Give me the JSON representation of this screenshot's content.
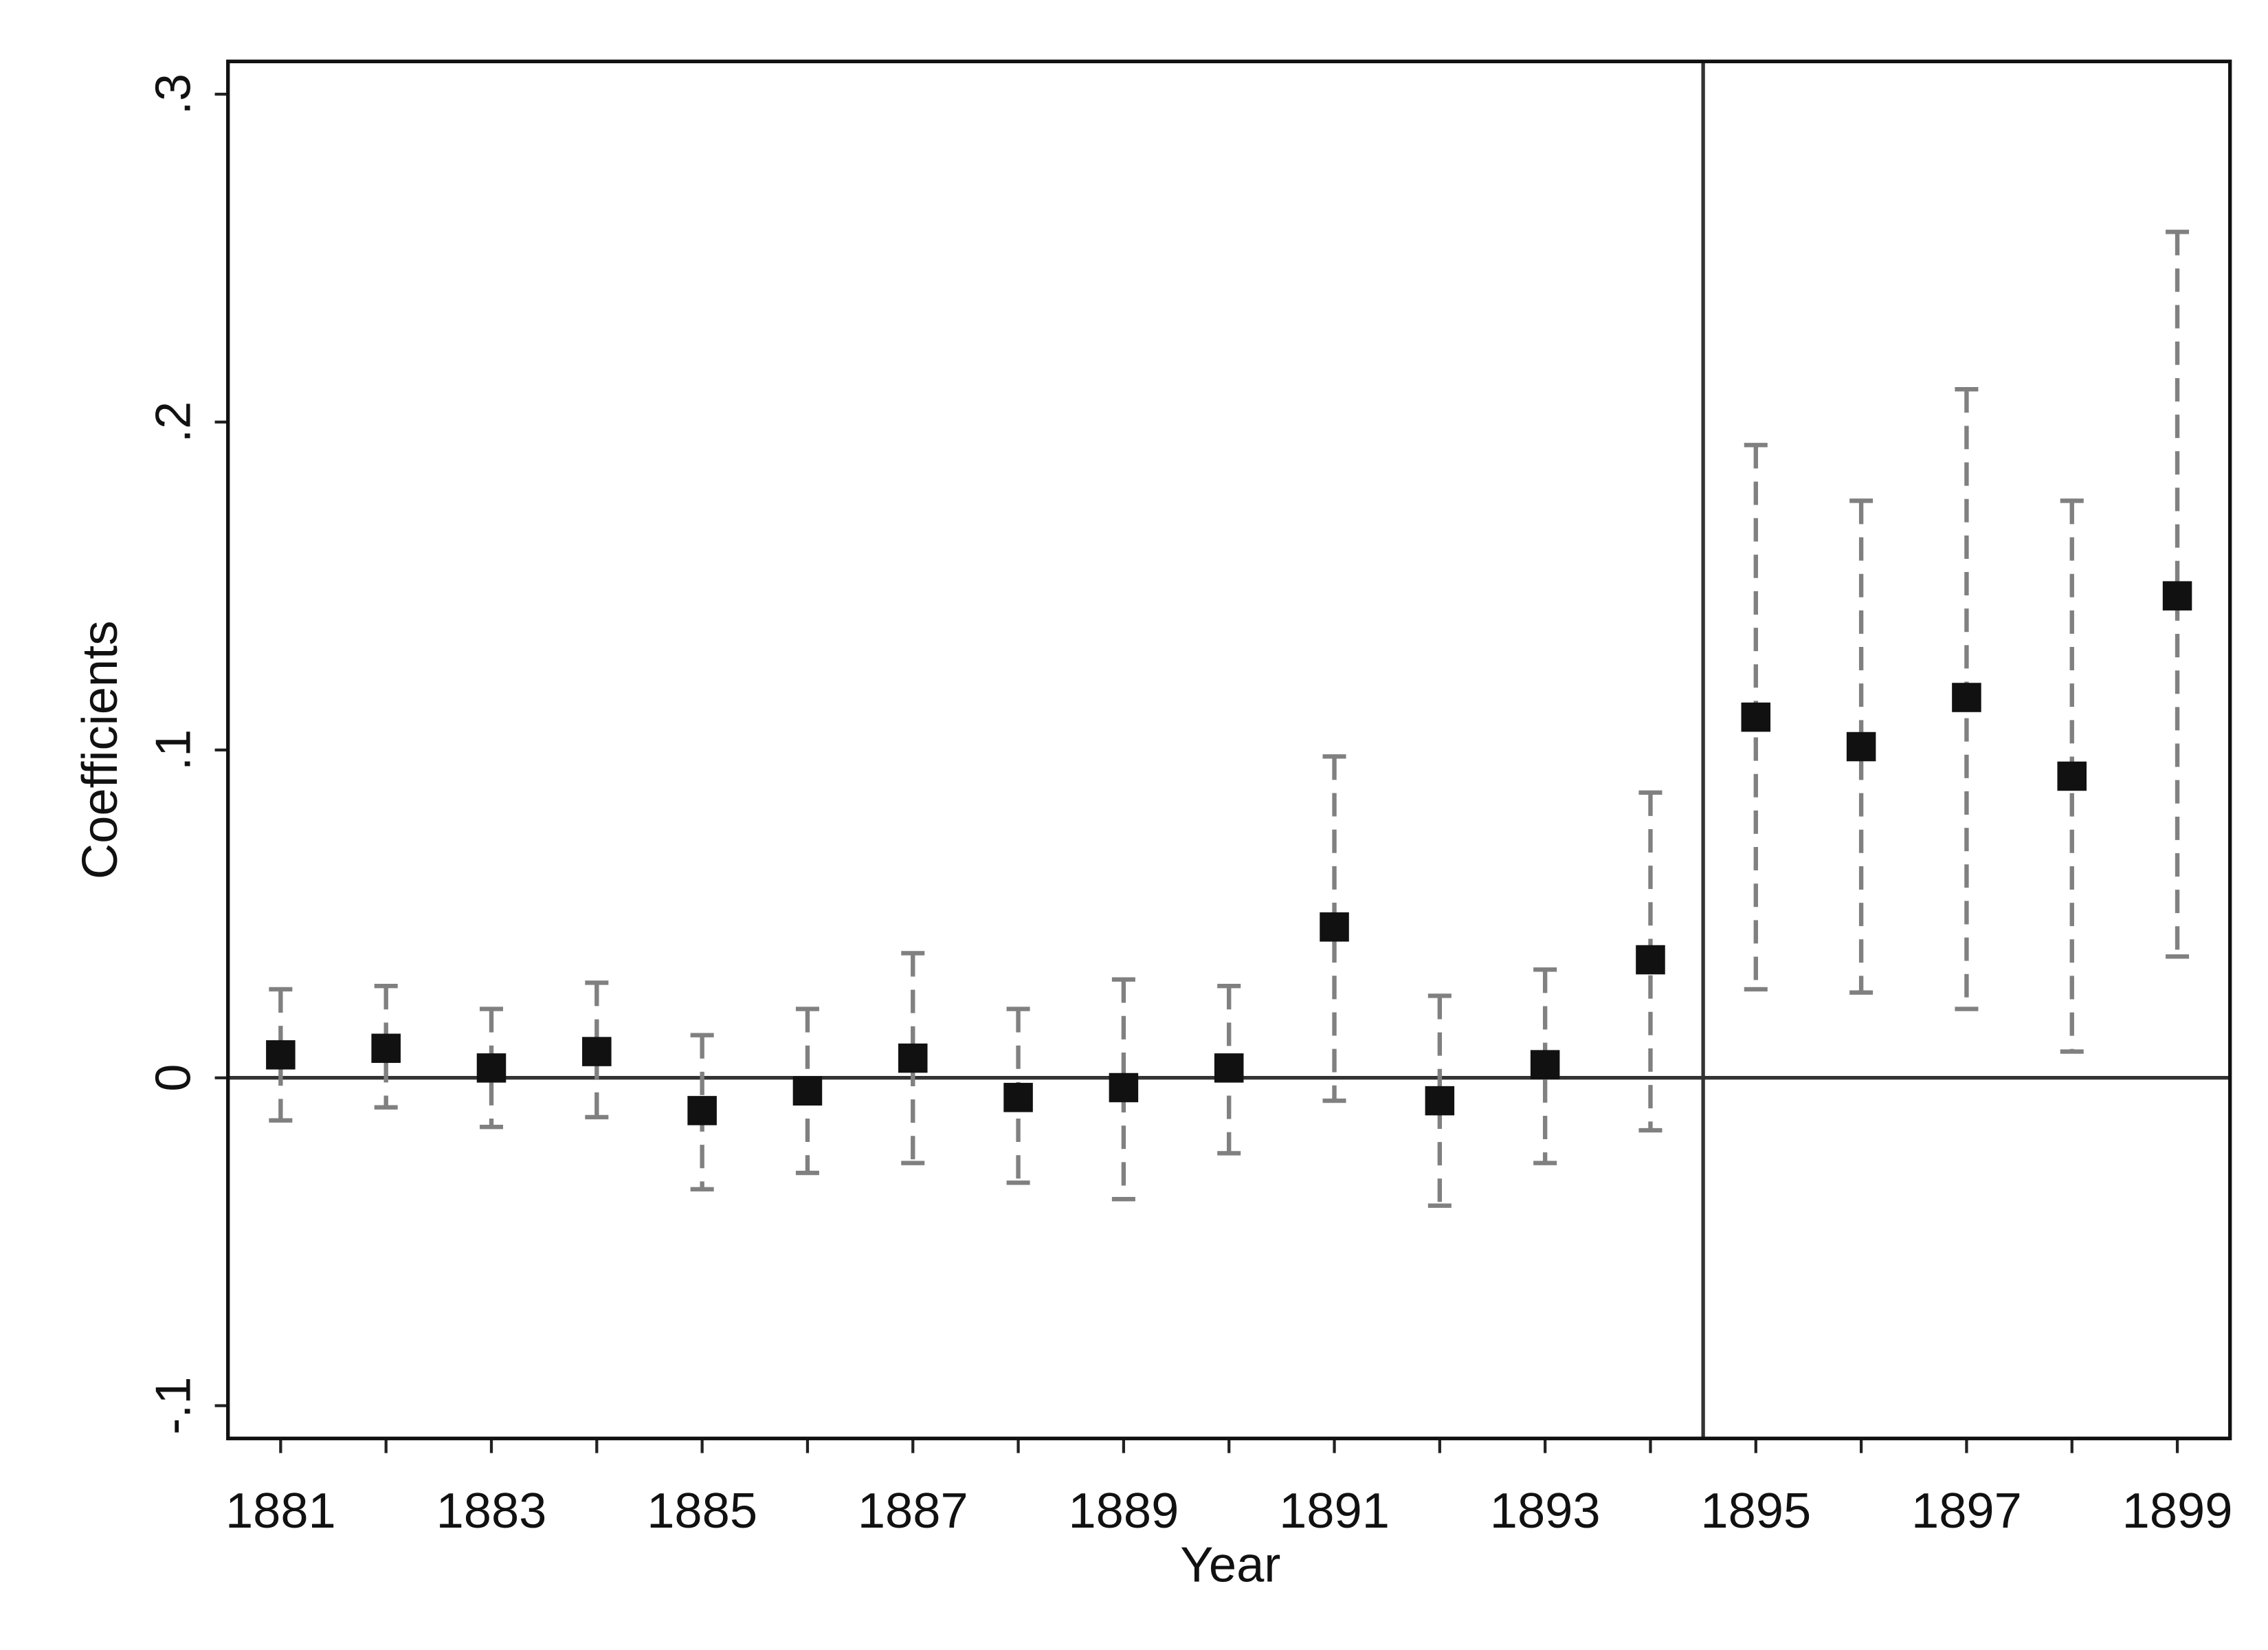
{
  "chart_data": {
    "type": "scatter",
    "x_label": "Year",
    "y_label": "Coefficients",
    "x": [
      1881,
      1882,
      1883,
      1884,
      1885,
      1886,
      1887,
      1888,
      1889,
      1890,
      1891,
      1892,
      1893,
      1894,
      1895,
      1896,
      1897,
      1898,
      1899
    ],
    "values": [
      0.007,
      0.009,
      0.003,
      0.008,
      -0.01,
      -0.004,
      0.006,
      -0.006,
      -0.003,
      0.003,
      0.046,
      -0.007,
      0.004,
      0.036,
      0.11,
      0.101,
      0.116,
      0.092,
      0.147
    ],
    "ci_low": [
      -0.013,
      -0.009,
      -0.015,
      -0.012,
      -0.034,
      -0.029,
      -0.026,
      -0.032,
      -0.037,
      -0.023,
      -0.007,
      -0.039,
      -0.026,
      -0.016,
      0.027,
      0.026,
      0.021,
      0.008,
      0.037
    ],
    "ci_high": [
      0.027,
      0.028,
      0.021,
      0.029,
      0.013,
      0.021,
      0.038,
      0.021,
      0.03,
      0.028,
      0.098,
      0.025,
      0.033,
      0.087,
      0.193,
      0.176,
      0.21,
      0.176,
      0.258
    ],
    "color": "#111111",
    "ci_color": "#808080",
    "xlim": [
      1880.5,
      1899.5
    ],
    "xticks": [
      1881,
      1883,
      1885,
      1887,
      1889,
      1891,
      1893,
      1895,
      1897,
      1899
    ],
    "xticks_minor": [
      1882,
      1884,
      1886,
      1888,
      1890,
      1892,
      1894,
      1896,
      1898
    ],
    "ylim": [
      -0.11,
      0.31
    ],
    "yticks": [
      {
        "value": -0.1,
        "label": "-.1"
      },
      0,
      {
        "value": 0.1,
        "label": ".1"
      },
      {
        "value": 0.2,
        "label": ".2"
      },
      {
        "value": 0.3,
        "label": ".3"
      }
    ],
    "reference_lines": {
      "y": 0,
      "x": 1894.5
    },
    "grid": false
  }
}
